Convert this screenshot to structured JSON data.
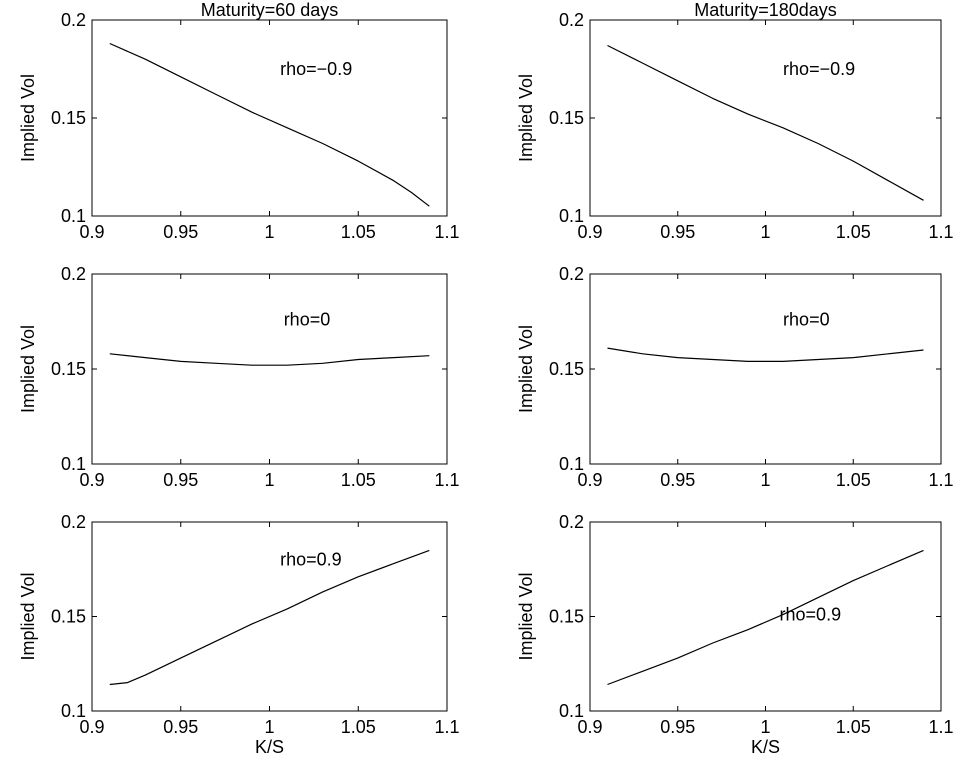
{
  "chart_data": [
    {
      "type": "line",
      "title": "Maturity=60 days",
      "xlabel": "",
      "ylabel": "Implied Vol",
      "annotation": "rho=−0.9",
      "xlim": [
        0.9,
        1.1
      ],
      "ylim": [
        0.1,
        0.2
      ],
      "xticks": [
        "0.9",
        "0.95",
        "1",
        "1.05",
        "1.1"
      ],
      "yticks": [
        "0.1",
        "0.15",
        "0.2"
      ],
      "series": [
        {
          "x": [
            0.91,
            0.93,
            0.95,
            0.97,
            0.99,
            1.01,
            1.03,
            1.05,
            1.07,
            1.08,
            1.09
          ],
          "y": [
            0.188,
            0.18,
            0.171,
            0.162,
            0.153,
            0.145,
            0.137,
            0.128,
            0.118,
            0.112,
            0.105
          ]
        }
      ]
    },
    {
      "type": "line",
      "title": "Maturity=180days",
      "xlabel": "",
      "ylabel": "Implied Vol",
      "annotation": "rho=−0.9",
      "xlim": [
        0.9,
        1.1
      ],
      "ylim": [
        0.1,
        0.2
      ],
      "xticks": [
        "0.9",
        "0.95",
        "1",
        "1.05",
        "1.1"
      ],
      "yticks": [
        "0.1",
        "0.15",
        "0.2"
      ],
      "series": [
        {
          "x": [
            0.91,
            0.93,
            0.95,
            0.97,
            0.99,
            1.01,
            1.03,
            1.05,
            1.07,
            1.09
          ],
          "y": [
            0.187,
            0.178,
            0.169,
            0.16,
            0.152,
            0.145,
            0.137,
            0.128,
            0.118,
            0.108
          ]
        }
      ]
    },
    {
      "type": "line",
      "title": "",
      "xlabel": "",
      "ylabel": "Implied Vol",
      "annotation": "rho=0",
      "xlim": [
        0.9,
        1.1
      ],
      "ylim": [
        0.1,
        0.2
      ],
      "xticks": [
        "0.9",
        "0.95",
        "1",
        "1.05",
        "1.1"
      ],
      "yticks": [
        "0.1",
        "0.15",
        "0.2"
      ],
      "series": [
        {
          "x": [
            0.91,
            0.93,
            0.95,
            0.97,
            0.99,
            1.0,
            1.01,
            1.03,
            1.05,
            1.07,
            1.09
          ],
          "y": [
            0.158,
            0.156,
            0.154,
            0.153,
            0.152,
            0.152,
            0.152,
            0.153,
            0.155,
            0.156,
            0.157
          ]
        }
      ]
    },
    {
      "type": "line",
      "title": "",
      "xlabel": "",
      "ylabel": "Implied Vol",
      "annotation": "rho=0",
      "xlim": [
        0.9,
        1.1
      ],
      "ylim": [
        0.1,
        0.2
      ],
      "xticks": [
        "0.9",
        "0.95",
        "1",
        "1.05",
        "1.1"
      ],
      "yticks": [
        "0.1",
        "0.15",
        "0.2"
      ],
      "series": [
        {
          "x": [
            0.91,
            0.93,
            0.95,
            0.97,
            0.99,
            1.0,
            1.01,
            1.03,
            1.05,
            1.07,
            1.09
          ],
          "y": [
            0.161,
            0.158,
            0.156,
            0.155,
            0.154,
            0.154,
            0.154,
            0.155,
            0.156,
            0.158,
            0.16
          ]
        }
      ]
    },
    {
      "type": "line",
      "title": "",
      "xlabel": "K/S",
      "ylabel": "Implied Vol",
      "annotation": "rho=0.9",
      "xlim": [
        0.9,
        1.1
      ],
      "ylim": [
        0.1,
        0.2
      ],
      "xticks": [
        "0.9",
        "0.95",
        "1",
        "1.05",
        "1.1"
      ],
      "yticks": [
        "0.1",
        "0.15",
        "0.2"
      ],
      "series": [
        {
          "x": [
            0.91,
            0.92,
            0.93,
            0.95,
            0.97,
            0.99,
            1.01,
            1.03,
            1.05,
            1.07,
            1.09
          ],
          "y": [
            0.114,
            0.115,
            0.119,
            0.128,
            0.137,
            0.146,
            0.154,
            0.163,
            0.171,
            0.178,
            0.185
          ]
        }
      ]
    },
    {
      "type": "line",
      "title": "",
      "xlabel": "K/S",
      "ylabel": "Implied Vol",
      "annotation": "rho=0.9",
      "xlim": [
        0.9,
        1.1
      ],
      "ylim": [
        0.1,
        0.2
      ],
      "xticks": [
        "0.9",
        "0.95",
        "1",
        "1.05",
        "1.1"
      ],
      "yticks": [
        "0.1",
        "0.15",
        "0.2"
      ],
      "series": [
        {
          "x": [
            0.91,
            0.93,
            0.95,
            0.97,
            0.99,
            1.01,
            1.03,
            1.05,
            1.07,
            1.09
          ],
          "y": [
            0.114,
            0.121,
            0.128,
            0.136,
            0.143,
            0.151,
            0.16,
            0.169,
            0.177,
            0.185
          ]
        }
      ]
    }
  ]
}
